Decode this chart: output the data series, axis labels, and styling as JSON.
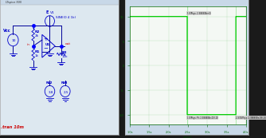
{
  "outer_bg": "#1a1a1a",
  "window_bg": "#e8eef4",
  "titlebar_bg": "#d0dce8",
  "titlebar_text_color": "#333333",
  "schematic_bg": "#dde8f0",
  "plot_bg": "#f0f4f8",
  "sc": "#0000cc",
  "wc": "#000099",
  "red": "#cc0000",
  "green_line": "#00cc00",
  "green_axis": "#006600",
  "green_text": "#004400",
  "blue_dot": "#0000ff",
  "title_text": "V(out)",
  "left_title": "LTspice",
  "right_title": "V(out)",
  "vcc_label": "Vcc",
  "r2_label": "R2",
  "r2_val": "2k",
  "r1_label": "R1",
  "r1_val": "1k",
  "r3_label": "R3",
  "r3_val": "10k",
  "u1_label": "U1",
  "v1_label": "V1",
  "v1_sine": "SINE(0 4 1k)",
  "v2_label": "V2",
  "v2_val": "3.8",
  "v3_label": "V3",
  "v3_val": "2.5",
  "vcc_val": "10",
  "tran_label": ".tran 10m",
  "e_label": "E",
  "out_label": "out",
  "in_label": "in",
  "vhigh": 10.0,
  "vlow": -10.0,
  "ymin": -12,
  "ymax": 12,
  "xmin": 1.0,
  "xmax": 4.0
}
